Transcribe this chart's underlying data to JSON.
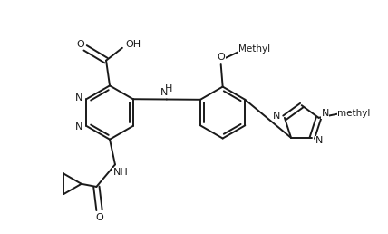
{
  "bg_color": "#ffffff",
  "line_color": "#1a1a1a",
  "lw": 1.4,
  "figsize": [
    4.28,
    2.58
  ],
  "dpi": 100,
  "xlim": [
    0,
    10.7
  ],
  "ylim": [
    0,
    6.45
  ]
}
